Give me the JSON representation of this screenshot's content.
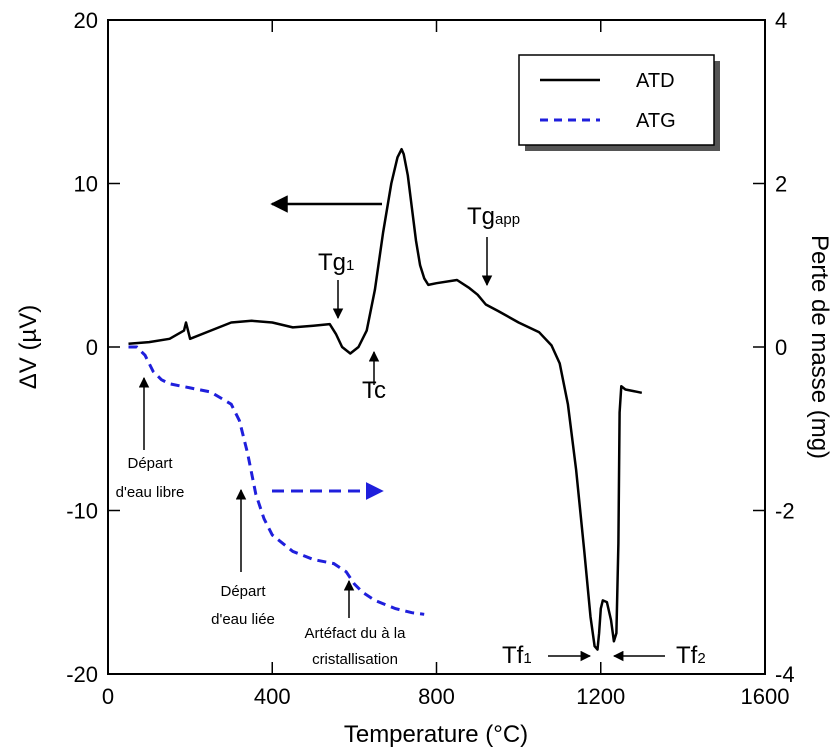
{
  "chart_data": {
    "type": "line",
    "xlabel": "Temperature (°C)",
    "ylabel_left": "ΔV (µV)",
    "ylabel_right": "Perte de masse (mg)",
    "xlim": [
      0,
      1600
    ],
    "ylim_left": [
      -20,
      20
    ],
    "ylim_right": [
      -4,
      4
    ],
    "x_ticks": [
      0,
      400,
      800,
      1200,
      1600
    ],
    "y_ticks_left": [
      -20,
      -10,
      0,
      10,
      20
    ],
    "y_ticks_right": [
      -4,
      -2,
      0,
      2,
      4
    ],
    "grid": false,
    "legend_position": "top-right",
    "colors": {
      "ATD": "#000000",
      "ATG": "#1f1fdc"
    },
    "series": [
      {
        "name": "ATD",
        "axis": "left",
        "style": "solid",
        "x": [
          50,
          100,
          150,
          185,
          190,
          200,
          250,
          300,
          350,
          400,
          450,
          500,
          540,
          555,
          570,
          590,
          610,
          630,
          650,
          670,
          690,
          705,
          715,
          720,
          730,
          740,
          750,
          760,
          770,
          780,
          800,
          850,
          880,
          900,
          920,
          950,
          1000,
          1050,
          1080,
          1100,
          1120,
          1140,
          1160,
          1175,
          1185,
          1192,
          1196,
          1200,
          1205,
          1215,
          1225,
          1232,
          1238,
          1243,
          1246,
          1250,
          1260,
          1280,
          1300
        ],
        "values": [
          0.2,
          0.3,
          0.5,
          1.0,
          1.5,
          0.5,
          1.0,
          1.5,
          1.6,
          1.5,
          1.2,
          1.3,
          1.4,
          0.8,
          0.0,
          -0.4,
          0.0,
          1.0,
          3.5,
          7.0,
          10.0,
          11.6,
          12.1,
          11.8,
          10.5,
          8.5,
          6.5,
          5.0,
          4.2,
          3.8,
          3.9,
          4.1,
          3.6,
          3.2,
          2.6,
          2.2,
          1.5,
          0.9,
          0.1,
          -1.0,
          -3.5,
          -7.5,
          -12.5,
          -16.5,
          -18.3,
          -18.5,
          -17.5,
          -16.0,
          -15.5,
          -15.6,
          -16.7,
          -18.0,
          -17.5,
          -12.0,
          -4.0,
          -2.4,
          -2.6,
          -2.7,
          -2.8
        ]
      },
      {
        "name": "ATG",
        "axis": "right",
        "style": "dashed",
        "x": [
          50,
          70,
          90,
          110,
          130,
          150,
          200,
          250,
          300,
          320,
          340,
          360,
          380,
          400,
          450,
          500,
          550,
          580,
          600,
          620,
          650,
          700,
          740,
          770
        ],
        "values": [
          0.0,
          0.0,
          -0.1,
          -0.3,
          -0.4,
          -0.45,
          -0.5,
          -0.55,
          -0.7,
          -0.9,
          -1.3,
          -1.8,
          -2.1,
          -2.3,
          -2.5,
          -2.6,
          -2.65,
          -2.75,
          -2.9,
          -3.0,
          -3.1,
          -3.2,
          -3.25,
          -3.27
        ]
      }
    ],
    "annotations": {
      "tg1": {
        "label": "Tg",
        "sub": "1"
      },
      "tc": {
        "label": "Tc"
      },
      "tgapp": {
        "label": "Tg",
        "sub": "app"
      },
      "tf1": {
        "label": "Tf",
        "sub": "1"
      },
      "tf2": {
        "label": "Tf",
        "sub": "2"
      },
      "depart_libre": [
        "Départ",
        "d'eau libre"
      ],
      "depart_liee": [
        "Départ",
        "d'eau liée"
      ],
      "artefact": [
        "Artéfact du à la",
        "cristallisation"
      ]
    }
  }
}
